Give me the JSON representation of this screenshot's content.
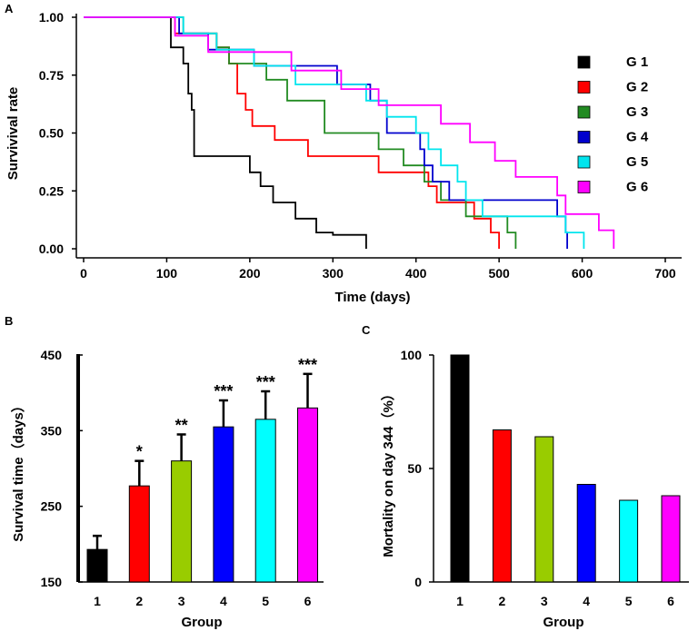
{
  "chart_data": [
    {
      "panel": "A",
      "type": "line",
      "subtype": "kaplan-meier step",
      "xlabel": "Time (days)",
      "ylabel": "Survivival rate",
      "xlim": [
        0,
        700
      ],
      "ylim": [
        0,
        1
      ],
      "x_ticks": [
        "0",
        "100",
        "200",
        "300",
        "400",
        "500",
        "600",
        "700"
      ],
      "y_ticks": [
        "0.00",
        "0.25",
        "0.50",
        "0.75",
        "1.00"
      ],
      "legend_position": "right",
      "series": [
        {
          "name": "G 1",
          "color": "#000000",
          "points": [
            [
              0,
              1.0
            ],
            [
              105,
              1.0
            ],
            [
              105,
              0.87
            ],
            [
              120,
              0.87
            ],
            [
              120,
              0.8
            ],
            [
              126,
              0.8
            ],
            [
              126,
              0.67
            ],
            [
              130,
              0.67
            ],
            [
              130,
              0.6
            ],
            [
              133,
              0.6
            ],
            [
              133,
              0.4
            ],
            [
              200,
              0.4
            ],
            [
              200,
              0.33
            ],
            [
              213,
              0.33
            ],
            [
              213,
              0.27
            ],
            [
              228,
              0.27
            ],
            [
              228,
              0.2
            ],
            [
              255,
              0.2
            ],
            [
              255,
              0.13
            ],
            [
              280,
              0.13
            ],
            [
              280,
              0.07
            ],
            [
              300,
              0.07
            ],
            [
              300,
              0.06
            ],
            [
              340,
              0.06
            ],
            [
              340,
              0.0
            ]
          ]
        },
        {
          "name": "G 2",
          "color": "#ff0000",
          "points": [
            [
              0,
              1.0
            ],
            [
              110,
              1.0
            ],
            [
              110,
              0.93
            ],
            [
              160,
              0.93
            ],
            [
              160,
              0.87
            ],
            [
              175,
              0.87
            ],
            [
              175,
              0.8
            ],
            [
              185,
              0.8
            ],
            [
              185,
              0.67
            ],
            [
              195,
              0.67
            ],
            [
              195,
              0.6
            ],
            [
              203,
              0.6
            ],
            [
              203,
              0.53
            ],
            [
              230,
              0.53
            ],
            [
              230,
              0.47
            ],
            [
              270,
              0.47
            ],
            [
              270,
              0.4
            ],
            [
              355,
              0.4
            ],
            [
              355,
              0.33
            ],
            [
              415,
              0.33
            ],
            [
              415,
              0.27
            ],
            [
              425,
              0.27
            ],
            [
              425,
              0.2
            ],
            [
              470,
              0.2
            ],
            [
              470,
              0.13
            ],
            [
              490,
              0.13
            ],
            [
              490,
              0.07
            ],
            [
              500,
              0.07
            ],
            [
              500,
              0.0
            ]
          ]
        },
        {
          "name": "G 3",
          "color": "#228b22",
          "points": [
            [
              0,
              1.0
            ],
            [
              120,
              1.0
            ],
            [
              120,
              0.93
            ],
            [
              160,
              0.93
            ],
            [
              160,
              0.87
            ],
            [
              175,
              0.87
            ],
            [
              175,
              0.8
            ],
            [
              220,
              0.8
            ],
            [
              220,
              0.73
            ],
            [
              245,
              0.73
            ],
            [
              245,
              0.64
            ],
            [
              290,
              0.64
            ],
            [
              290,
              0.5
            ],
            [
              355,
              0.5
            ],
            [
              355,
              0.43
            ],
            [
              385,
              0.43
            ],
            [
              385,
              0.36
            ],
            [
              410,
              0.36
            ],
            [
              410,
              0.29
            ],
            [
              430,
              0.29
            ],
            [
              430,
              0.21
            ],
            [
              460,
              0.21
            ],
            [
              460,
              0.14
            ],
            [
              510,
              0.14
            ],
            [
              510,
              0.07
            ],
            [
              520,
              0.07
            ],
            [
              520,
              0.0
            ]
          ]
        },
        {
          "name": "G 4",
          "color": "#0000cd",
          "points": [
            [
              0,
              1.0
            ],
            [
              115,
              1.0
            ],
            [
              115,
              0.93
            ],
            [
              150,
              0.93
            ],
            [
              150,
              0.86
            ],
            [
              205,
              0.86
            ],
            [
              205,
              0.79
            ],
            [
              305,
              0.79
            ],
            [
              305,
              0.71
            ],
            [
              345,
              0.71
            ],
            [
              345,
              0.64
            ],
            [
              365,
              0.64
            ],
            [
              365,
              0.5
            ],
            [
              405,
              0.5
            ],
            [
              405,
              0.43
            ],
            [
              410,
              0.43
            ],
            [
              410,
              0.36
            ],
            [
              420,
              0.36
            ],
            [
              420,
              0.29
            ],
            [
              440,
              0.29
            ],
            [
              440,
              0.21
            ],
            [
              570,
              0.21
            ],
            [
              570,
              0.14
            ],
            [
              580,
              0.14
            ],
            [
              580,
              0.07
            ],
            [
              582,
              0.07
            ],
            [
              582,
              0.0
            ]
          ]
        },
        {
          "name": "G 5",
          "color": "#00e5ee",
          "points": [
            [
              0,
              1.0
            ],
            [
              120,
              1.0
            ],
            [
              120,
              0.93
            ],
            [
              160,
              0.93
            ],
            [
              160,
              0.86
            ],
            [
              205,
              0.86
            ],
            [
              205,
              0.79
            ],
            [
              255,
              0.79
            ],
            [
              255,
              0.71
            ],
            [
              340,
              0.71
            ],
            [
              340,
              0.64
            ],
            [
              365,
              0.64
            ],
            [
              365,
              0.57
            ],
            [
              400,
              0.57
            ],
            [
              400,
              0.5
            ],
            [
              415,
              0.5
            ],
            [
              415,
              0.43
            ],
            [
              430,
              0.43
            ],
            [
              430,
              0.36
            ],
            [
              450,
              0.36
            ],
            [
              450,
              0.29
            ],
            [
              460,
              0.29
            ],
            [
              460,
              0.21
            ],
            [
              480,
              0.21
            ],
            [
              480,
              0.14
            ],
            [
              580,
              0.14
            ],
            [
              580,
              0.07
            ],
            [
              602,
              0.07
            ],
            [
              602,
              0.0
            ]
          ]
        },
        {
          "name": "G 6",
          "color": "#ff00ff",
          "points": [
            [
              0,
              1.0
            ],
            [
              110,
              1.0
            ],
            [
              110,
              0.92
            ],
            [
              150,
              0.92
            ],
            [
              150,
              0.85
            ],
            [
              250,
              0.85
            ],
            [
              250,
              0.77
            ],
            [
              310,
              0.77
            ],
            [
              310,
              0.69
            ],
            [
              355,
              0.69
            ],
            [
              355,
              0.62
            ],
            [
              430,
              0.62
            ],
            [
              430,
              0.54
            ],
            [
              465,
              0.54
            ],
            [
              465,
              0.46
            ],
            [
              495,
              0.46
            ],
            [
              495,
              0.38
            ],
            [
              520,
              0.38
            ],
            [
              520,
              0.31
            ],
            [
              570,
              0.31
            ],
            [
              570,
              0.23
            ],
            [
              580,
              0.23
            ],
            [
              580,
              0.15
            ],
            [
              620,
              0.15
            ],
            [
              620,
              0.08
            ],
            [
              638,
              0.08
            ],
            [
              638,
              0.0
            ]
          ]
        }
      ]
    },
    {
      "panel": "B",
      "type": "bar",
      "xlabel": "Group",
      "ylabel": "Survival time（days）",
      "categories": [
        "1",
        "2",
        "3",
        "4",
        "5",
        "6"
      ],
      "values": [
        193,
        277,
        310,
        355,
        365,
        380
      ],
      "errors": [
        18,
        33,
        35,
        35,
        37,
        45
      ],
      "significance": [
        "",
        "*",
        "**",
        "***",
        "***",
        "***"
      ],
      "colors": [
        "#000000",
        "#ff0000",
        "#99cc00",
        "#0000ff",
        "#00ffff",
        "#ff00ff"
      ],
      "ylim": [
        150,
        450
      ],
      "y_ticks": [
        "150",
        "250",
        "350",
        "450"
      ]
    },
    {
      "panel": "C",
      "type": "bar",
      "xlabel": "Group",
      "ylabel": "Mortality on day 344（%）",
      "categories": [
        "1",
        "2",
        "3",
        "4",
        "5",
        "6"
      ],
      "values": [
        100,
        67,
        64,
        43,
        36,
        38
      ],
      "colors": [
        "#000000",
        "#ff0000",
        "#99cc00",
        "#0000ff",
        "#00ffff",
        "#ff00ff"
      ],
      "ylim": [
        0,
        100
      ],
      "y_ticks": [
        "0",
        "50",
        "100"
      ]
    }
  ]
}
